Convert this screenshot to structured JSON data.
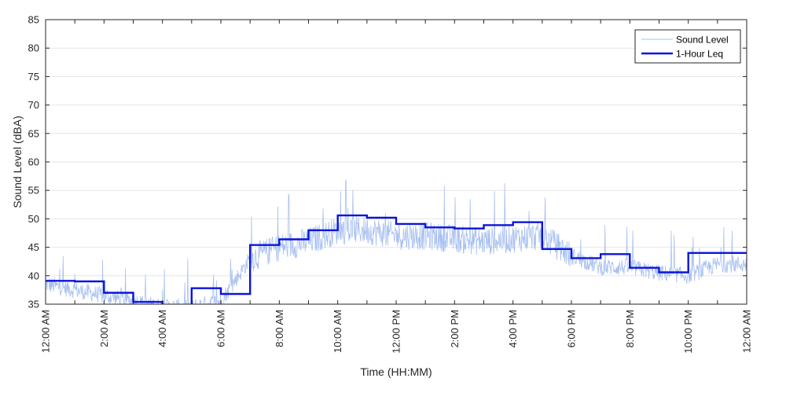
{
  "chart_data": {
    "type": "line",
    "title": "",
    "xlabel": "Time (HH:MM)",
    "ylabel": "Sound Level (dBA)",
    "ylim": [
      35,
      85
    ],
    "xlim_hours": [
      0,
      24
    ],
    "yticks": [
      35,
      40,
      45,
      50,
      55,
      60,
      65,
      70,
      75,
      80,
      85
    ],
    "xticks": [
      {
        "hour": 0,
        "label": "12:00 AM"
      },
      {
        "hour": 2,
        "label": "2:00 AM"
      },
      {
        "hour": 4,
        "label": "4:00 AM"
      },
      {
        "hour": 6,
        "label": "6:00 AM"
      },
      {
        "hour": 8,
        "label": "8:00 AM"
      },
      {
        "hour": 10,
        "label": "10:00 AM"
      },
      {
        "hour": 12,
        "label": "12:00 PM"
      },
      {
        "hour": 14,
        "label": "2:00 PM"
      },
      {
        "hour": 16,
        "label": "4:00 PM"
      },
      {
        "hour": 18,
        "label": "6:00 PM"
      },
      {
        "hour": 20,
        "label": "8:00 PM"
      },
      {
        "hour": 22,
        "label": "10:00 PM"
      },
      {
        "hour": 24,
        "label": "12:00 AM"
      }
    ],
    "grid": "horizontal",
    "legend_position": "top-right",
    "series": [
      {
        "name": "Sound Level",
        "style": "thin",
        "color": "#a8c0f0",
        "baseline_hourly": [
          38.5,
          37.5,
          36.5,
          35.5,
          34.5,
          34.5,
          35.5,
          43,
          45,
          46,
          48,
          48,
          47,
          47,
          46.5,
          46,
          46.5,
          47,
          43.5,
          41.5,
          41.5,
          40.5,
          40,
          42
        ]
      },
      {
        "name": "1-Hour Leq",
        "style": "thick",
        "color": "#0a14dc",
        "values": [
          39.1,
          39.0,
          37.0,
          35.4,
          34.9,
          37.8,
          36.8,
          45.4,
          46.4,
          48.0,
          50.6,
          50.2,
          49.1,
          48.5,
          48.3,
          48.9,
          49.4,
          44.7,
          43.1,
          43.8,
          41.4,
          40.6,
          44.0,
          44.0
        ]
      }
    ]
  }
}
